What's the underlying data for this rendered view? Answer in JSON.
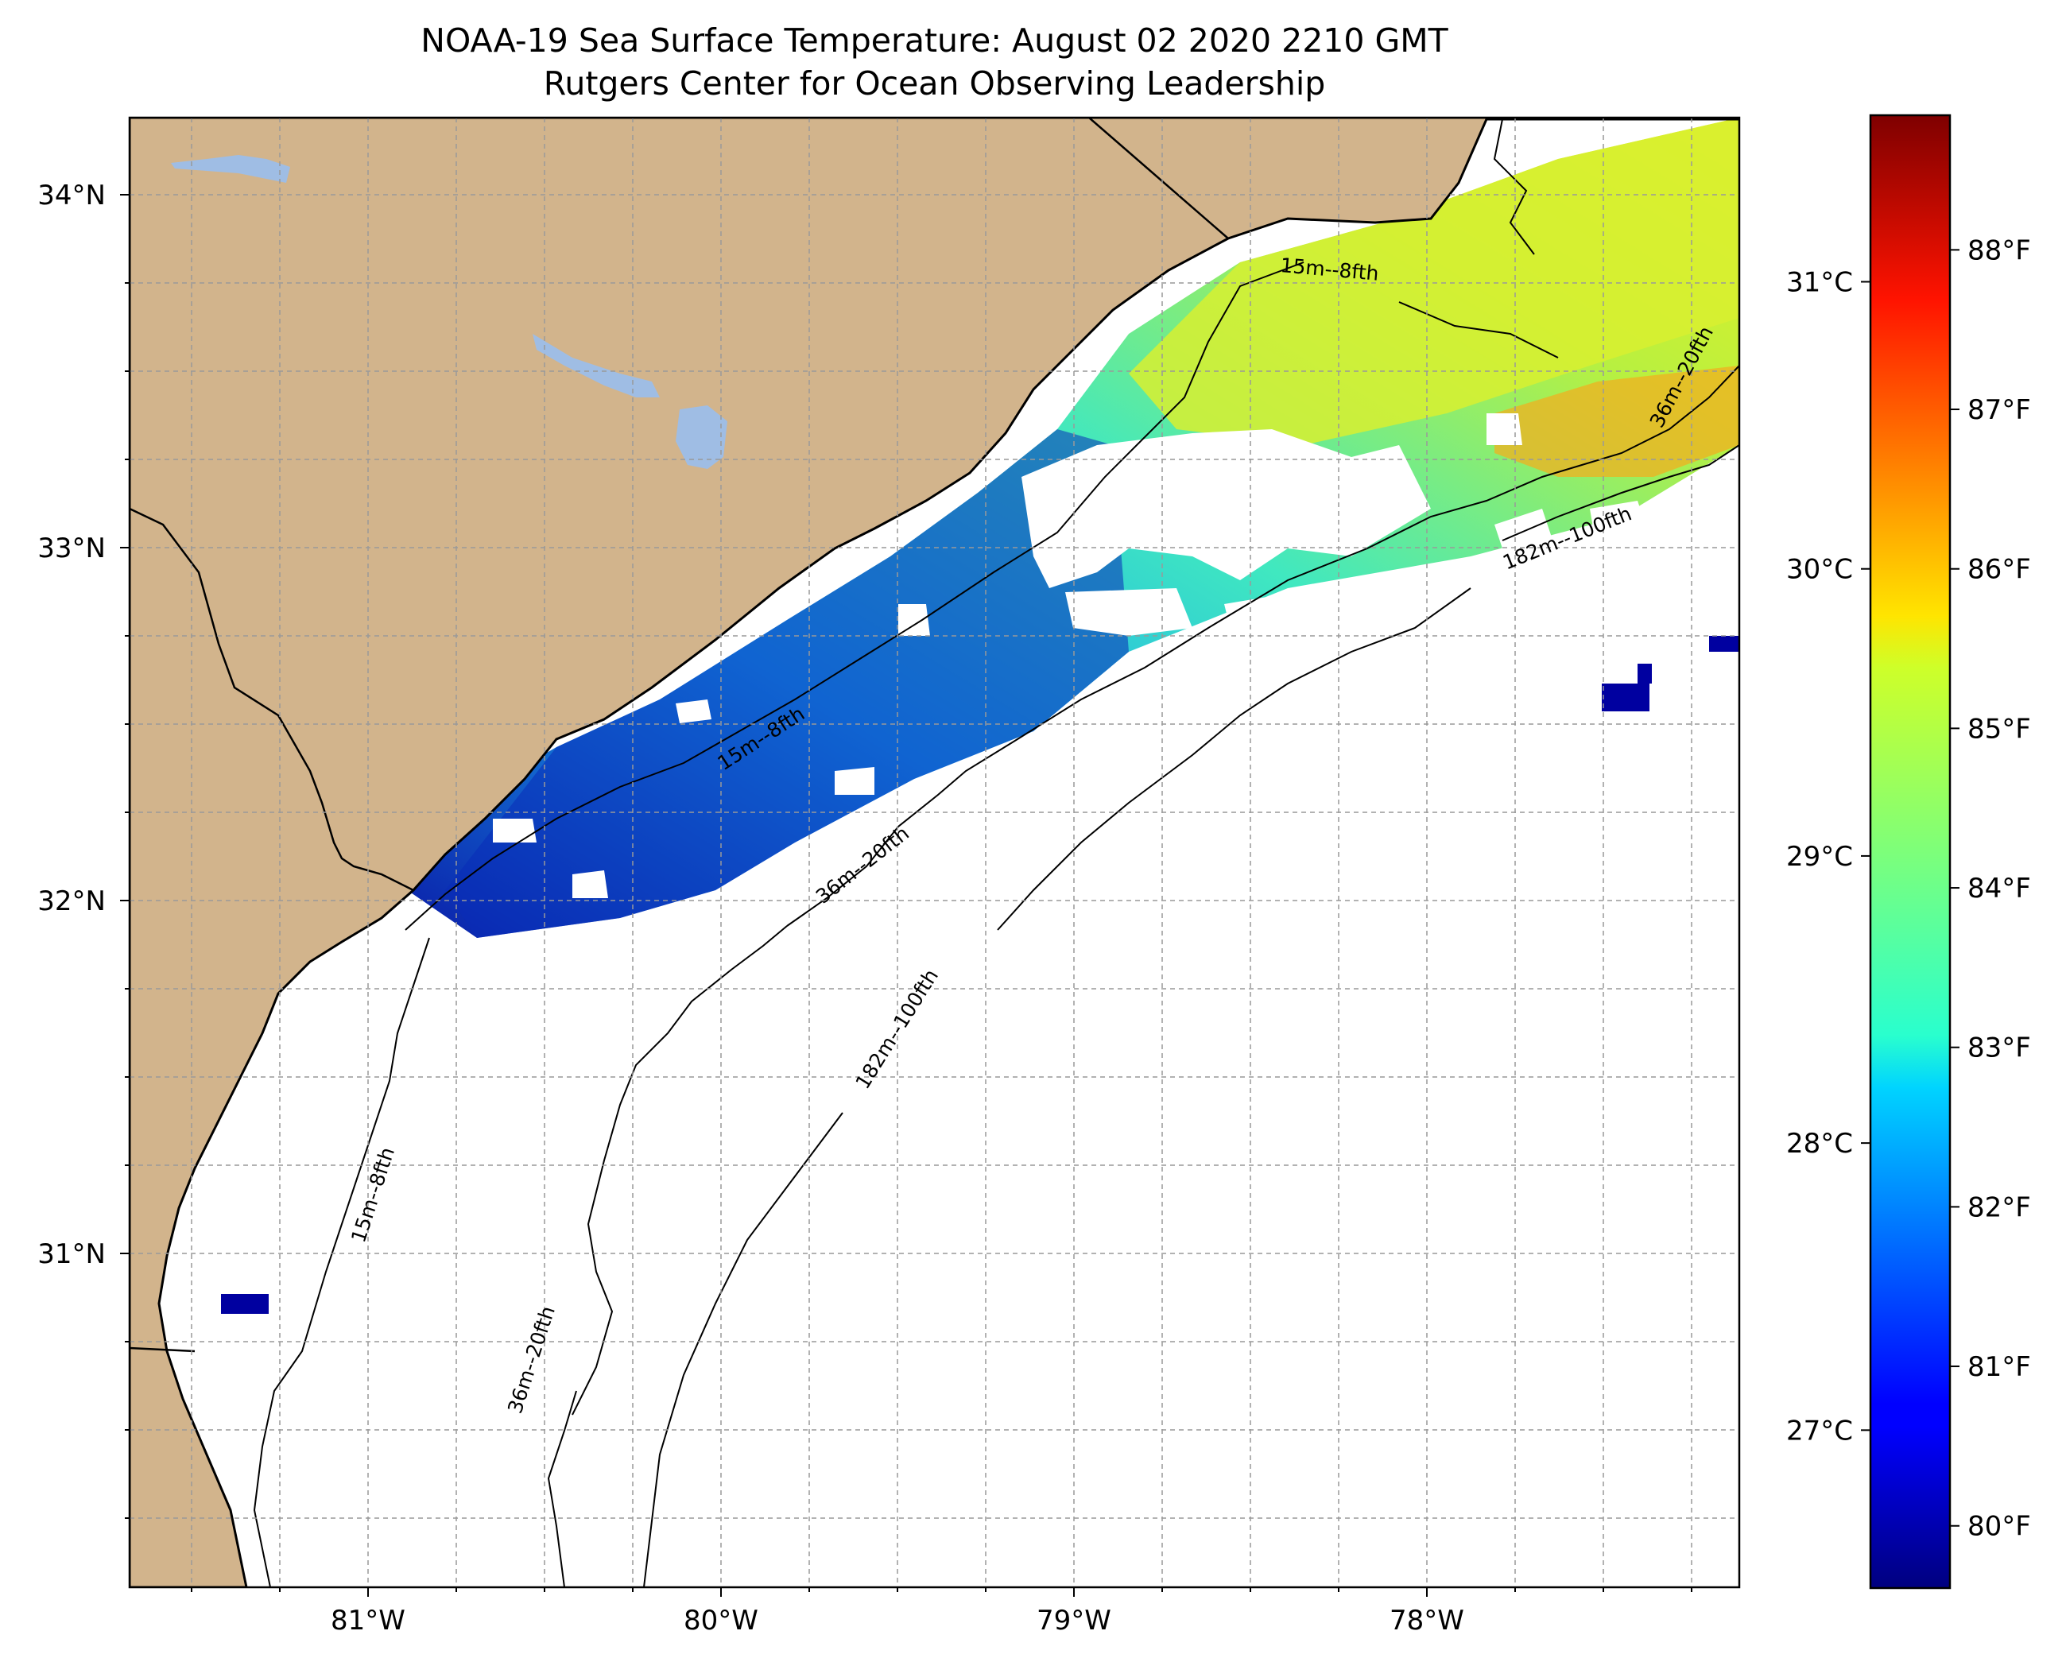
{
  "title": "NOAA-19 Sea Surface Temperature: August 02 2020 2210 GMT",
  "subtitle": "Rutgers Center for Ocean Observing Leadership",
  "map": {
    "lon_range": [
      -81.68,
      -77.12
    ],
    "lat_range": [
      30.05,
      34.22
    ],
    "lat_ticks": [
      {
        "value": 34,
        "label": "34°N"
      },
      {
        "value": 33,
        "label": "33°N"
      },
      {
        "value": 32,
        "label": "32°N"
      },
      {
        "value": 31,
        "label": "31°N"
      }
    ],
    "lon_ticks": [
      {
        "value": -81,
        "label": "81°W"
      },
      {
        "value": -80,
        "label": "80°W"
      },
      {
        "value": -79,
        "label": "79°W"
      },
      {
        "value": -78,
        "label": "78°W"
      }
    ],
    "gridlines": "dashed every 0.25°",
    "colors": {
      "land": "#d2b48c",
      "lakes": "#9fbde4",
      "ocean_nodata": "#ffffff",
      "coastline": "#000000"
    },
    "contour_labels": [
      {
        "id": "15m-ne",
        "text": "15m--8fth"
      },
      {
        "id": "15m-mid",
        "text": "15m--8fth"
      },
      {
        "id": "15m-sw",
        "text": "15m--8fth"
      },
      {
        "id": "36m-ne",
        "text": "36m--20fth"
      },
      {
        "id": "36m-mid",
        "text": "36m--20fth"
      },
      {
        "id": "36m-sw",
        "text": "36m--20fth"
      },
      {
        "id": "182m-ne",
        "text": "182m--100fth"
      },
      {
        "id": "182m-sw",
        "text": "182m--100fth"
      }
    ]
  },
  "colorbar": {
    "colormap": "jet",
    "celsius_range": [
      26.45,
      31.58
    ],
    "fahrenheit_ticks": [
      {
        "value": 80,
        "label": "80°F"
      },
      {
        "value": 81,
        "label": "81°F"
      },
      {
        "value": 82,
        "label": "82°F"
      },
      {
        "value": 83,
        "label": "83°F"
      },
      {
        "value": 84,
        "label": "84°F"
      },
      {
        "value": 85,
        "label": "85°F"
      },
      {
        "value": 86,
        "label": "86°F"
      },
      {
        "value": 87,
        "label": "87°F"
      },
      {
        "value": 88,
        "label": "88°F"
      }
    ],
    "celsius_ticks": [
      {
        "value": 27,
        "label": "27°C"
      },
      {
        "value": 28,
        "label": "28°C"
      },
      {
        "value": 29,
        "label": "29°C"
      },
      {
        "value": 30,
        "label": "30°C"
      },
      {
        "value": 31,
        "label": "31°C"
      }
    ]
  }
}
